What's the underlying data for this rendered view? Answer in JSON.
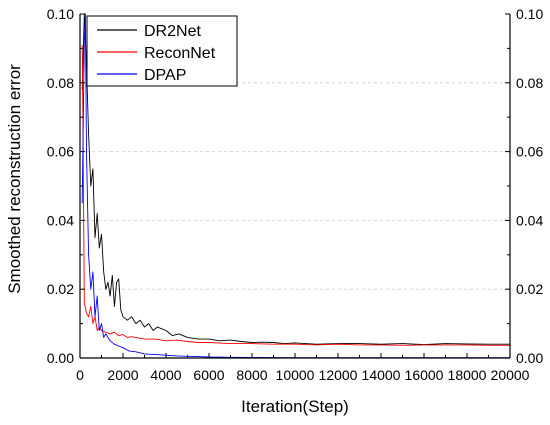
{
  "chart_data": {
    "type": "line",
    "title": "",
    "xlabel": "Iteration(Step)",
    "ylabel": "Smoothed reconstruction error",
    "xlim": [
      0,
      20000
    ],
    "ylim": [
      0,
      0.1
    ],
    "x_ticks": [
      "0",
      "2000",
      "4000",
      "6000",
      "8000",
      "10000",
      "12000",
      "14000",
      "16000",
      "18000",
      "20000"
    ],
    "y_ticks": [
      "0.00",
      "0.02",
      "0.04",
      "0.06",
      "0.08",
      "0.10"
    ],
    "right_axis_ticks": [
      "0.00",
      "0.02",
      "0.04",
      "0.06",
      "0.08",
      "0.10"
    ],
    "grid": true,
    "legend_position": "top-left",
    "colors": {
      "DR2Net": "#000000",
      "ReconNet": "#ff0000",
      "DPAP": "#0000ff",
      "grid": "#cccccc"
    },
    "series": [
      {
        "name": "DR2Net",
        "x": [
          100,
          200,
          300,
          400,
          500,
          600,
          700,
          800,
          900,
          1000,
          1100,
          1200,
          1300,
          1400,
          1500,
          1600,
          1700,
          1800,
          1900,
          2000,
          2200,
          2400,
          2600,
          2800,
          3000,
          3200,
          3400,
          3600,
          3800,
          4000,
          4300,
          4600,
          5000,
          5500,
          6000,
          6500,
          7000,
          7500,
          8000,
          8500,
          9000,
          9500,
          10000,
          11000,
          12000,
          13000,
          14000,
          15000,
          16000,
          17000,
          18000,
          19000,
          20000
        ],
        "values": [
          0.078,
          0.1,
          0.085,
          0.065,
          0.05,
          0.055,
          0.035,
          0.042,
          0.032,
          0.036,
          0.025,
          0.02,
          0.022,
          0.018,
          0.024,
          0.015,
          0.022,
          0.023,
          0.014,
          0.012,
          0.011,
          0.012,
          0.01,
          0.011,
          0.009,
          0.01,
          0.008,
          0.009,
          0.0085,
          0.008,
          0.0065,
          0.007,
          0.006,
          0.0055,
          0.0055,
          0.005,
          0.0052,
          0.0048,
          0.0045,
          0.0046,
          0.0045,
          0.0042,
          0.0044,
          0.004,
          0.0042,
          0.0042,
          0.004,
          0.0042,
          0.0039,
          0.0042,
          0.0041,
          0.004,
          0.004
        ]
      },
      {
        "name": "ReconNet",
        "x": [
          100,
          150,
          200,
          300,
          400,
          500,
          600,
          700,
          800,
          900,
          1000,
          1200,
          1400,
          1600,
          1800,
          2000,
          2200,
          2400,
          2600,
          3000,
          3500,
          4000,
          4500,
          5000,
          5500,
          6000,
          7000,
          8000,
          9000,
          10000,
          11000,
          12000,
          13000,
          14000,
          15000,
          16000,
          17000,
          18000,
          19000,
          20000
        ],
        "values": [
          0.091,
          0.06,
          0.016,
          0.013,
          0.012,
          0.015,
          0.01,
          0.012,
          0.008,
          0.009,
          0.008,
          0.0075,
          0.007,
          0.0075,
          0.0065,
          0.0068,
          0.006,
          0.0062,
          0.006,
          0.0055,
          0.0055,
          0.005,
          0.0052,
          0.0048,
          0.0045,
          0.0045,
          0.0042,
          0.0042,
          0.004,
          0.004,
          0.0038,
          0.004,
          0.0038,
          0.0038,
          0.0037,
          0.0038,
          0.0038,
          0.0038,
          0.0037,
          0.0037
        ]
      },
      {
        "name": "DPAP",
        "x": [
          100,
          200,
          250,
          300,
          400,
          500,
          600,
          700,
          800,
          900,
          1000,
          1100,
          1200,
          1400,
          1600,
          1800,
          2000,
          2300,
          2600,
          3000,
          3500,
          4000,
          4500,
          5000,
          5500,
          6000,
          7000,
          8000,
          10000,
          12000,
          14000,
          16000,
          18000,
          20000
        ],
        "values": [
          0.045,
          0.092,
          0.1,
          0.06,
          0.03,
          0.02,
          0.025,
          0.012,
          0.018,
          0.008,
          0.01,
          0.006,
          0.007,
          0.005,
          0.004,
          0.0035,
          0.003,
          0.002,
          0.0018,
          0.0012,
          0.001,
          0.0008,
          0.0006,
          0.0005,
          0.0004,
          0.0003,
          0.0002,
          0.00015,
          0.0001,
          0.0001,
          0.0001,
          0.0001,
          0.0001,
          0.0001
        ]
      }
    ]
  }
}
